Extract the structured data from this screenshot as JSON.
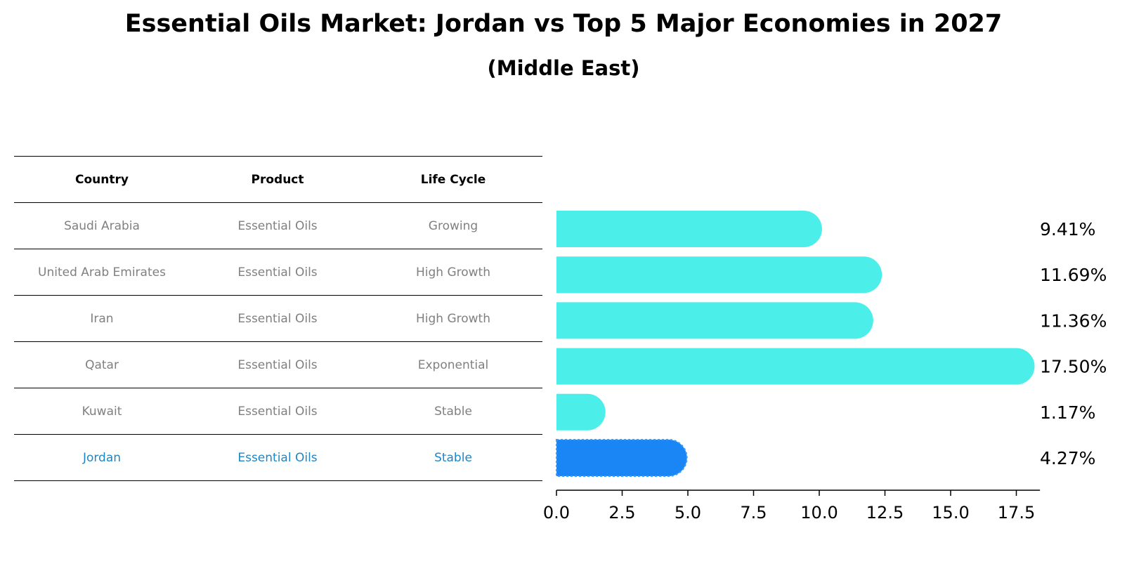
{
  "title": "Essential Oils Market: Jordan vs Top 5 Major Economies in 2027",
  "subtitle": "(Middle East)",
  "table": {
    "headers": [
      "Country",
      "Product",
      "Life Cycle"
    ],
    "rows": [
      [
        "Saudi Arabia",
        "Essential Oils",
        "Growing"
      ],
      [
        "United Arab Emirates",
        "Essential Oils",
        "High Growth"
      ],
      [
        "Iran",
        "Essential Oils",
        "High Growth"
      ],
      [
        "Qatar",
        "Essential Oils",
        "Exponential"
      ],
      [
        "Kuwait",
        "Essential Oils",
        "Stable"
      ],
      [
        "Jordan",
        "Essential Oils",
        "Stable"
      ]
    ]
  },
  "colors": {
    "bar": "#4ceeea",
    "highlight_bar": "#1a86f5",
    "highlight_text": "#1f86c5",
    "muted_text": "#808080"
  },
  "chart_data": {
    "type": "bar",
    "orientation": "horizontal",
    "title": "Essential Oils Market: Jordan vs Top 5 Major Economies in 2027",
    "subtitle": "(Middle East)",
    "categories": [
      "Saudi Arabia",
      "United Arab Emirates",
      "Iran",
      "Qatar",
      "Kuwait",
      "Jordan"
    ],
    "values": [
      9.41,
      11.69,
      11.36,
      17.5,
      1.17,
      4.27
    ],
    "value_labels": [
      "9.41%",
      "11.69%",
      "11.36%",
      "17.50%",
      "1.17%",
      "4.27%"
    ],
    "highlight": "Jordan",
    "xlim": [
      0,
      18.4
    ],
    "xticks": [
      0,
      2.5,
      5,
      7.5,
      10,
      12.5,
      15,
      17.5
    ],
    "xtick_labels": [
      "0.0",
      "2.5",
      "5.0",
      "7.5",
      "10.0",
      "12.5",
      "15.0",
      "17.5"
    ],
    "xlabel": "",
    "ylabel": "",
    "grid": false
  }
}
